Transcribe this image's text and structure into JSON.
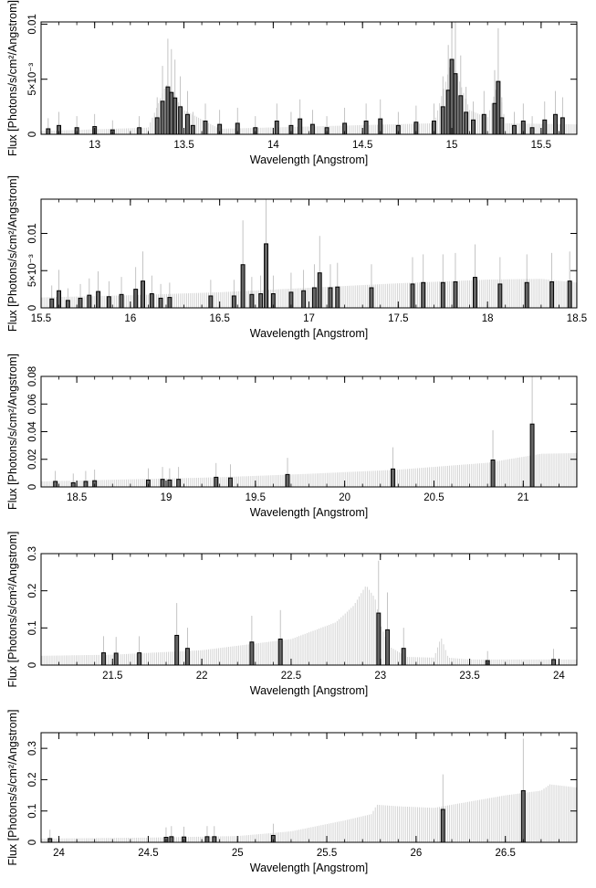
{
  "chart_data": [
    {
      "type": "histogram",
      "xlabel": "Wavelength [Angstrom]",
      "ylabel": "Flux [Photons/s/cm²/Angstrom]",
      "xlim": [
        12.7,
        15.7
      ],
      "ylim": [
        0,
        0.0102
      ],
      "x_ticks": [
        {
          "v": 13,
          "label": "13"
        },
        {
          "v": 13.5,
          "label": "13.5"
        },
        {
          "v": 14,
          "label": "14"
        },
        {
          "v": 14.5,
          "label": "14.5"
        },
        {
          "v": 15,
          "label": "15"
        },
        {
          "v": 15.5,
          "label": "15.5"
        }
      ],
      "y_ticks": [
        {
          "v": 0,
          "label": "0"
        },
        {
          "v": 0.005,
          "label": "5×10⁻³"
        },
        {
          "v": 0.01,
          "label": "0.01"
        }
      ],
      "model_points": [
        [
          12.7,
          0.0003
        ],
        [
          13.3,
          0.0006
        ],
        [
          13.4,
          0.0045
        ],
        [
          13.5,
          0.0022
        ],
        [
          13.7,
          0.0005
        ],
        [
          14.9,
          0.001
        ],
        [
          15.0,
          0.0068
        ],
        [
          15.1,
          0.0022
        ],
        [
          15.2,
          0.0015
        ],
        [
          15.26,
          0.0048
        ],
        [
          15.3,
          0.001
        ],
        [
          15.7,
          0.0009
        ]
      ],
      "points": [
        [
          12.74,
          0.0005
        ],
        [
          12.8,
          0.0008
        ],
        [
          12.9,
          0.0006
        ],
        [
          13.0,
          0.0007
        ],
        [
          13.1,
          0.0004
        ],
        [
          13.25,
          0.0006
        ],
        [
          13.35,
          0.0015
        ],
        [
          13.38,
          0.003
        ],
        [
          13.41,
          0.0043
        ],
        [
          13.43,
          0.0038
        ],
        [
          13.45,
          0.0033
        ],
        [
          13.48,
          0.0025
        ],
        [
          13.52,
          0.0018
        ],
        [
          13.55,
          0.0008
        ],
        [
          13.62,
          0.0012
        ],
        [
          13.7,
          0.0009
        ],
        [
          13.8,
          0.001
        ],
        [
          13.9,
          0.0006
        ],
        [
          14.02,
          0.0012
        ],
        [
          14.1,
          0.0008
        ],
        [
          14.15,
          0.0014
        ],
        [
          14.22,
          0.0009
        ],
        [
          14.3,
          0.0006
        ],
        [
          14.4,
          0.001
        ],
        [
          14.52,
          0.0012
        ],
        [
          14.6,
          0.0014
        ],
        [
          14.7,
          0.0008
        ],
        [
          14.8,
          0.0011
        ],
        [
          14.9,
          0.0012
        ],
        [
          14.95,
          0.0025
        ],
        [
          14.98,
          0.004
        ],
        [
          15.0,
          0.0068
        ],
        [
          15.02,
          0.0055
        ],
        [
          15.05,
          0.0035
        ],
        [
          15.08,
          0.002
        ],
        [
          15.12,
          0.0013
        ],
        [
          15.18,
          0.0018
        ],
        [
          15.24,
          0.0028
        ],
        [
          15.26,
          0.0048
        ],
        [
          15.28,
          0.0015
        ],
        [
          15.35,
          0.0008
        ],
        [
          15.4,
          0.0012
        ],
        [
          15.45,
          0.0006
        ],
        [
          15.52,
          0.0013
        ],
        [
          15.58,
          0.0018
        ],
        [
          15.62,
          0.0015
        ]
      ]
    },
    {
      "type": "histogram",
      "xlabel": "Wavelength [Angstrom]",
      "ylabel": "Flux [Photons/s/cm²/Angstrom]",
      "xlim": [
        15.5,
        18.5
      ],
      "ylim": [
        0,
        0.0146
      ],
      "x_ticks": [
        {
          "v": 15.5,
          "label": "15.5"
        },
        {
          "v": 16,
          "label": "16"
        },
        {
          "v": 16.5,
          "label": "16.5"
        },
        {
          "v": 17,
          "label": "17"
        },
        {
          "v": 17.5,
          "label": "17.5"
        },
        {
          "v": 18,
          "label": "18"
        },
        {
          "v": 18.5,
          "label": "18.5"
        }
      ],
      "y_ticks": [
        {
          "v": 0,
          "label": "0"
        },
        {
          "v": 0.005,
          "label": "5×10⁻³"
        },
        {
          "v": 0.01,
          "label": "0.01"
        }
      ],
      "model_points": [
        [
          15.5,
          0.0014
        ],
        [
          16.0,
          0.0017
        ],
        [
          16.5,
          0.0021
        ],
        [
          17.0,
          0.0027
        ],
        [
          17.5,
          0.0033
        ],
        [
          18.0,
          0.0038
        ],
        [
          18.3,
          0.0039
        ],
        [
          18.5,
          0.0034
        ]
      ],
      "points": [
        [
          15.56,
          0.0012
        ],
        [
          15.6,
          0.0023
        ],
        [
          15.65,
          0.001
        ],
        [
          15.72,
          0.0013
        ],
        [
          15.77,
          0.0017
        ],
        [
          15.82,
          0.0022
        ],
        [
          15.88,
          0.0015
        ],
        [
          15.95,
          0.0018
        ],
        [
          16.03,
          0.0025
        ],
        [
          16.07,
          0.0036
        ],
        [
          16.12,
          0.0019
        ],
        [
          16.17,
          0.0013
        ],
        [
          16.22,
          0.0014
        ],
        [
          16.45,
          0.0016
        ],
        [
          16.58,
          0.0016
        ],
        [
          16.63,
          0.0058
        ],
        [
          16.68,
          0.0018
        ],
        [
          16.73,
          0.0019
        ],
        [
          16.76,
          0.0086
        ],
        [
          16.8,
          0.0019
        ],
        [
          16.9,
          0.0021
        ],
        [
          16.97,
          0.0023
        ],
        [
          17.03,
          0.0027
        ],
        [
          17.06,
          0.0047
        ],
        [
          17.12,
          0.0027
        ],
        [
          17.16,
          0.0028
        ],
        [
          17.35,
          0.0027
        ],
        [
          17.58,
          0.0032
        ],
        [
          17.64,
          0.0034
        ],
        [
          17.75,
          0.0034
        ],
        [
          17.82,
          0.0035
        ],
        [
          17.93,
          0.0041
        ],
        [
          18.07,
          0.0032
        ],
        [
          18.22,
          0.0034
        ],
        [
          18.36,
          0.0035
        ],
        [
          18.46,
          0.0036
        ]
      ]
    },
    {
      "type": "histogram",
      "xlabel": "Wavelength [Angstrom]",
      "ylabel": "Flux [Photons/s/cm²/Angstrom]",
      "xlim": [
        18.3,
        21.3
      ],
      "ylim": [
        0,
        0.08
      ],
      "x_ticks": [
        {
          "v": 18.5,
          "label": "18.5"
        },
        {
          "v": 19,
          "label": "19"
        },
        {
          "v": 19.5,
          "label": "19.5"
        },
        {
          "v": 20,
          "label": "20"
        },
        {
          "v": 20.5,
          "label": "20.5"
        },
        {
          "v": 21,
          "label": "21"
        }
      ],
      "y_ticks": [
        {
          "v": 0,
          "label": "0"
        },
        {
          "v": 0.02,
          "label": "0.02"
        },
        {
          "v": 0.04,
          "label": "0.04"
        },
        {
          "v": 0.06,
          "label": "0.06"
        },
        {
          "v": 0.08,
          "label": "0.08"
        }
      ],
      "model_points": [
        [
          18.3,
          0.004
        ],
        [
          18.8,
          0.0055
        ],
        [
          19.3,
          0.007
        ],
        [
          19.8,
          0.0095
        ],
        [
          20.3,
          0.0125
        ],
        [
          20.8,
          0.0175
        ],
        [
          21.1,
          0.024
        ],
        [
          21.3,
          0.0245
        ]
      ],
      "points": [
        [
          18.38,
          0.004
        ],
        [
          18.48,
          0.003
        ],
        [
          18.55,
          0.004
        ],
        [
          18.6,
          0.0045
        ],
        [
          18.9,
          0.005
        ],
        [
          18.98,
          0.0055
        ],
        [
          19.02,
          0.005
        ],
        [
          19.07,
          0.0055
        ],
        [
          19.28,
          0.007
        ],
        [
          19.36,
          0.0065
        ],
        [
          19.68,
          0.009
        ],
        [
          20.27,
          0.013
        ],
        [
          20.83,
          0.0195
        ],
        [
          21.05,
          0.0455
        ]
      ]
    },
    {
      "type": "histogram",
      "xlabel": "Wavelength [Angstrom]",
      "ylabel": "Flux [Photons/s/cm²/Angstrom]",
      "xlim": [
        21.1,
        24.1
      ],
      "ylim": [
        0,
        0.3
      ],
      "x_ticks": [
        {
          "v": 21.5,
          "label": "21.5"
        },
        {
          "v": 22,
          "label": "22"
        },
        {
          "v": 22.5,
          "label": "22.5"
        },
        {
          "v": 23,
          "label": "23"
        },
        {
          "v": 23.5,
          "label": "23.5"
        },
        {
          "v": 24,
          "label": "24"
        }
      ],
      "y_ticks": [
        {
          "v": 0,
          "label": "0"
        },
        {
          "v": 0.1,
          "label": "0.1"
        },
        {
          "v": 0.2,
          "label": "0.2"
        },
        {
          "v": 0.3,
          "label": "0.3"
        }
      ],
      "model_points": [
        [
          21.1,
          0.025
        ],
        [
          21.5,
          0.028
        ],
        [
          22.0,
          0.04
        ],
        [
          22.5,
          0.07
        ],
        [
          22.75,
          0.115
        ],
        [
          22.85,
          0.16
        ],
        [
          22.92,
          0.215
        ],
        [
          22.97,
          0.18
        ],
        [
          23.0,
          0.11
        ],
        [
          23.05,
          0.05
        ],
        [
          23.15,
          0.022
        ],
        [
          23.3,
          0.02
        ],
        [
          23.34,
          0.075
        ],
        [
          23.38,
          0.02
        ],
        [
          23.5,
          0.015
        ],
        [
          24.1,
          0.015
        ]
      ],
      "points": [
        [
          21.45,
          0.033
        ],
        [
          21.52,
          0.032
        ],
        [
          21.65,
          0.033
        ],
        [
          21.86,
          0.08
        ],
        [
          21.92,
          0.045
        ],
        [
          22.28,
          0.062
        ],
        [
          22.44,
          0.07
        ],
        [
          22.99,
          0.14
        ],
        [
          23.04,
          0.095
        ],
        [
          23.13,
          0.045
        ],
        [
          23.6,
          0.012
        ],
        [
          23.97,
          0.015
        ]
      ]
    },
    {
      "type": "histogram",
      "xlabel": "Wavelength [Angstrom]",
      "ylabel": "Flux [Photons/s/cm²/Angstrom]",
      "xlim": [
        23.9,
        26.9
      ],
      "ylim": [
        0,
        0.35
      ],
      "x_ticks": [
        {
          "v": 24,
          "label": "24"
        },
        {
          "v": 24.5,
          "label": "24.5"
        },
        {
          "v": 25,
          "label": "25"
        },
        {
          "v": 25.5,
          "label": "25.5"
        },
        {
          "v": 26,
          "label": "26"
        },
        {
          "v": 26.5,
          "label": "26.5"
        }
      ],
      "y_ticks": [
        {
          "v": 0,
          "label": "0"
        },
        {
          "v": 0.1,
          "label": "0.1"
        },
        {
          "v": 0.2,
          "label": "0.2"
        },
        {
          "v": 0.3,
          "label": "0.3"
        }
      ],
      "model_points": [
        [
          23.9,
          0.012
        ],
        [
          24.5,
          0.015
        ],
        [
          25.0,
          0.02
        ],
        [
          25.3,
          0.035
        ],
        [
          25.6,
          0.07
        ],
        [
          25.75,
          0.09
        ],
        [
          25.78,
          0.12
        ],
        [
          25.9,
          0.115
        ],
        [
          26.1,
          0.11
        ],
        [
          26.3,
          0.13
        ],
        [
          26.5,
          0.15
        ],
        [
          26.7,
          0.165
        ],
        [
          26.75,
          0.185
        ],
        [
          26.9,
          0.175
        ]
      ],
      "points": [
        [
          23.95,
          0.012
        ],
        [
          24.6,
          0.016
        ],
        [
          24.63,
          0.018
        ],
        [
          24.7,
          0.017
        ],
        [
          24.83,
          0.018
        ],
        [
          24.87,
          0.018
        ],
        [
          25.2,
          0.022
        ],
        [
          26.15,
          0.105
        ],
        [
          26.6,
          0.165
        ]
      ]
    }
  ]
}
